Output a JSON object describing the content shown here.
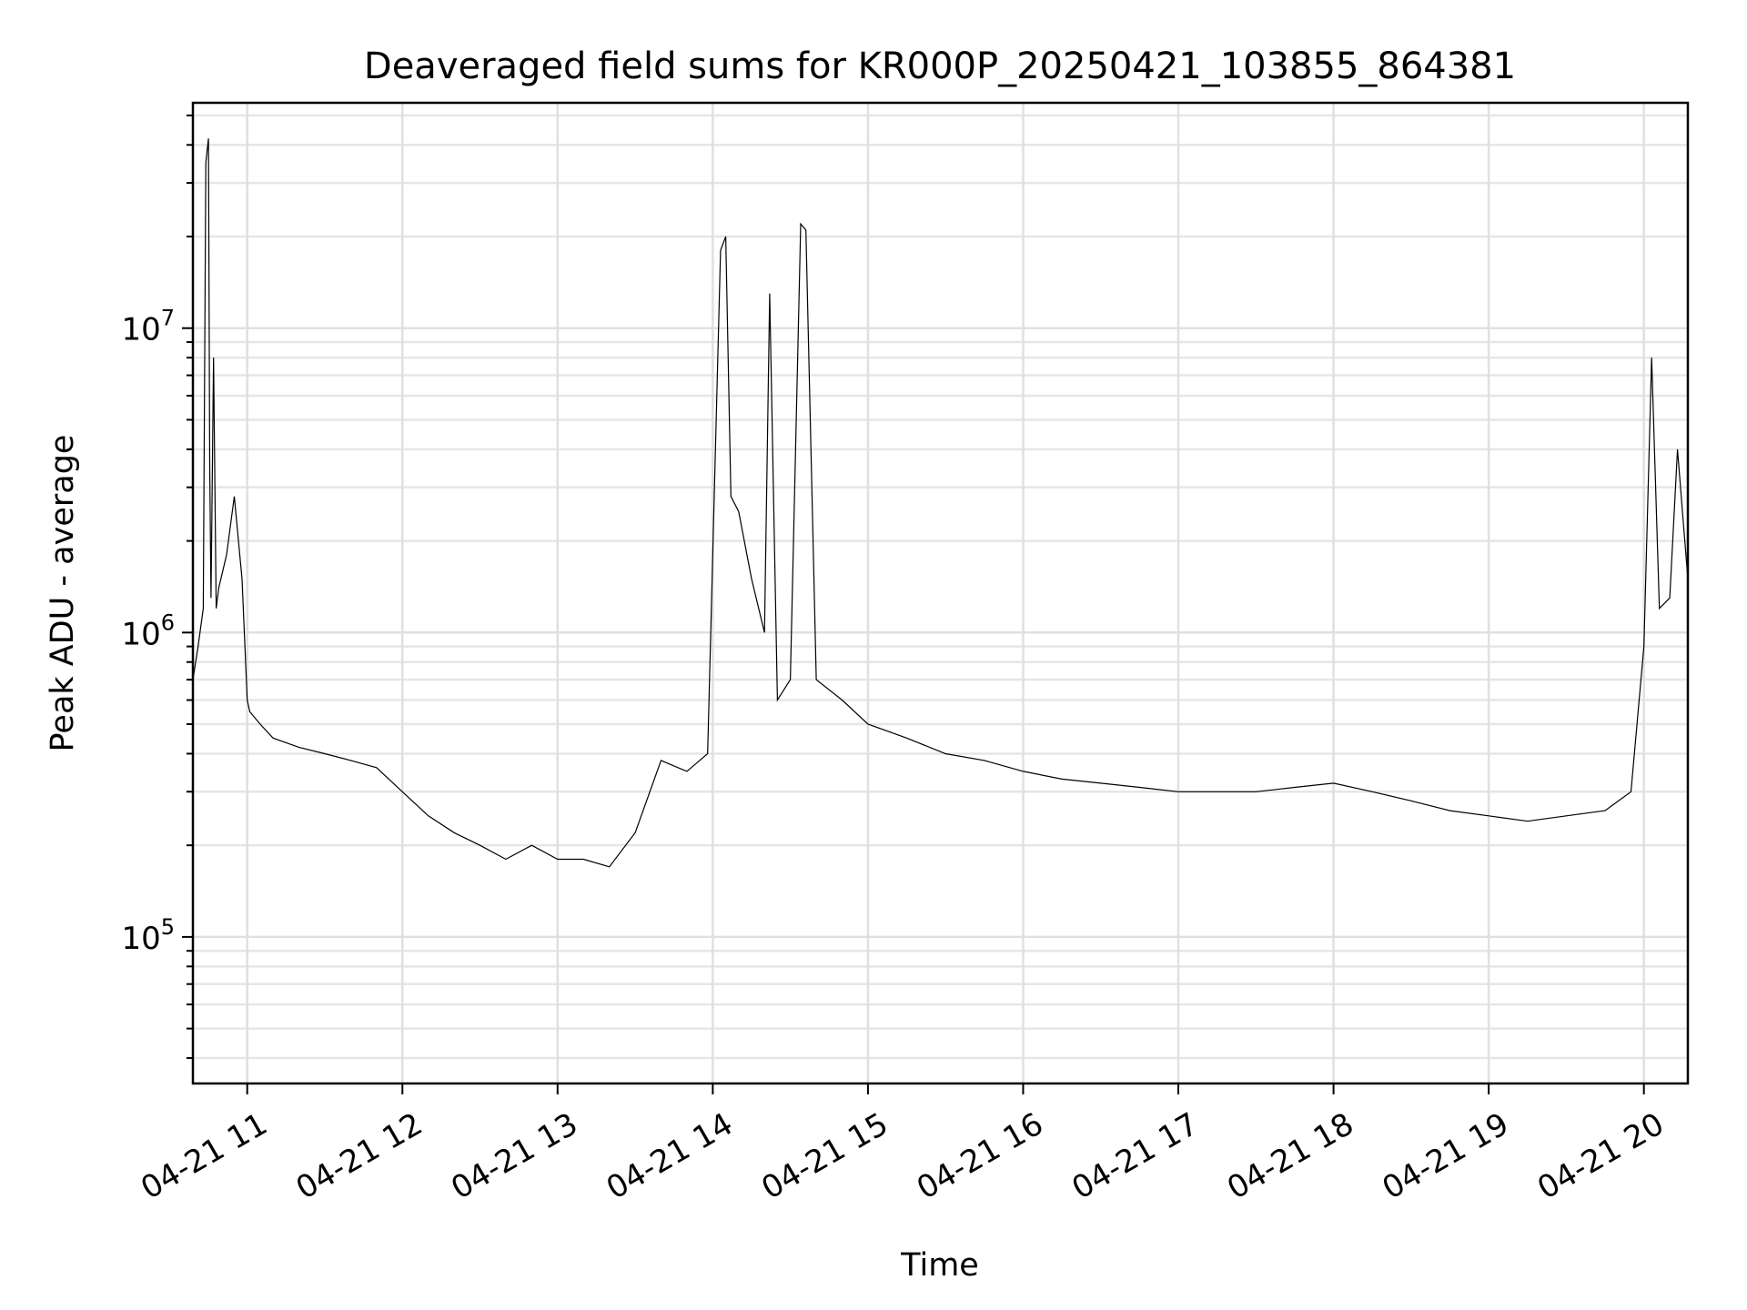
{
  "chart_data": {
    "type": "line",
    "title": "Deaveraged field sums for KR000P_20250421_103855_864381",
    "xlabel": "Time",
    "ylabel": "Peak ADU - average",
    "xscale": "time",
    "yscale": "log",
    "xlim": [
      "2025-04-21T10:39:00",
      "2025-04-21T20:17:00"
    ],
    "ylim": [
      33000,
      55000000
    ],
    "grid": true,
    "legend": "none",
    "line_color": "#000000",
    "xticks": [
      {
        "value": "2025-04-21T11:00:00",
        "label": "04-21 11"
      },
      {
        "value": "2025-04-21T12:00:00",
        "label": "04-21 12"
      },
      {
        "value": "2025-04-21T13:00:00",
        "label": "04-21 13"
      },
      {
        "value": "2025-04-21T14:00:00",
        "label": "04-21 14"
      },
      {
        "value": "2025-04-21T15:00:00",
        "label": "04-21 15"
      },
      {
        "value": "2025-04-21T16:00:00",
        "label": "04-21 16"
      },
      {
        "value": "2025-04-21T17:00:00",
        "label": "04-21 17"
      },
      {
        "value": "2025-04-21T18:00:00",
        "label": "04-21 18"
      },
      {
        "value": "2025-04-21T19:00:00",
        "label": "04-21 19"
      },
      {
        "value": "2025-04-21T20:00:00",
        "label": "04-21 20"
      }
    ],
    "yticks": [
      {
        "value": 100000,
        "base": "10",
        "exp": "5"
      },
      {
        "value": 1000000,
        "base": "10",
        "exp": "6"
      },
      {
        "value": 10000000,
        "base": "10",
        "exp": "7"
      }
    ],
    "series": [
      {
        "x": [
          "2025-04-21T10:39:00",
          "2025-04-21T10:41:00",
          "2025-04-21T10:43:00",
          "2025-04-21T10:44:00",
          "2025-04-21T10:45:00",
          "2025-04-21T10:45:30",
          "2025-04-21T10:46:00",
          "2025-04-21T10:47:00",
          "2025-04-21T10:48:00",
          "2025-04-21T10:49:00",
          "2025-04-21T10:52:00",
          "2025-04-21T10:55:00",
          "2025-04-21T10:58:00",
          "2025-04-21T11:00:00",
          "2025-04-21T11:01:00",
          "2025-04-21T11:05:00",
          "2025-04-21T11:10:00",
          "2025-04-21T11:20:00",
          "2025-04-21T11:30:00",
          "2025-04-21T11:40:00",
          "2025-04-21T11:50:00",
          "2025-04-21T12:00:00",
          "2025-04-21T12:10:00",
          "2025-04-21T12:20:00",
          "2025-04-21T12:30:00",
          "2025-04-21T12:40:00",
          "2025-04-21T12:50:00",
          "2025-04-21T13:00:00",
          "2025-04-21T13:10:00",
          "2025-04-21T13:20:00",
          "2025-04-21T13:30:00",
          "2025-04-21T13:40:00",
          "2025-04-21T13:50:00",
          "2025-04-21T13:58:00",
          "2025-04-21T14:03:00",
          "2025-04-21T14:05:00",
          "2025-04-21T14:07:00",
          "2025-04-21T14:10:00",
          "2025-04-21T14:15:00",
          "2025-04-21T14:20:00",
          "2025-04-21T14:22:00",
          "2025-04-21T14:25:00",
          "2025-04-21T14:30:00",
          "2025-04-21T14:34:00",
          "2025-04-21T14:36:00",
          "2025-04-21T14:40:00",
          "2025-04-21T14:50:00",
          "2025-04-21T15:00:00",
          "2025-04-21T15:15:00",
          "2025-04-21T15:30:00",
          "2025-04-21T15:45:00",
          "2025-04-21T16:00:00",
          "2025-04-21T16:15:00",
          "2025-04-21T16:30:00",
          "2025-04-21T16:45:00",
          "2025-04-21T17:00:00",
          "2025-04-21T17:15:00",
          "2025-04-21T17:30:00",
          "2025-04-21T17:45:00",
          "2025-04-21T18:00:00",
          "2025-04-21T18:15:00",
          "2025-04-21T18:30:00",
          "2025-04-21T18:45:00",
          "2025-04-21T19:00:00",
          "2025-04-21T19:15:00",
          "2025-04-21T19:30:00",
          "2025-04-21T19:45:00",
          "2025-04-21T19:55:00",
          "2025-04-21T20:00:00",
          "2025-04-21T20:03:00",
          "2025-04-21T20:06:00",
          "2025-04-21T20:10:00",
          "2025-04-21T20:13:00",
          "2025-04-21T20:17:00"
        ],
        "y": [
          700000,
          900000,
          1200000,
          35000000,
          42000000,
          3500000,
          1300000,
          8000000,
          1200000,
          1400000,
          1800000,
          2800000,
          1500000,
          600000,
          550000,
          500000,
          450000,
          420000,
          400000,
          380000,
          360000,
          300000,
          250000,
          220000,
          200000,
          180000,
          200000,
          180000,
          180000,
          170000,
          220000,
          380000,
          350000,
          400000,
          18000000,
          20000000,
          2800000,
          2500000,
          1500000,
          1000000,
          13000000,
          600000,
          700000,
          22000000,
          21000000,
          700000,
          600000,
          500000,
          450000,
          400000,
          380000,
          350000,
          330000,
          320000,
          310000,
          300000,
          300000,
          300000,
          310000,
          320000,
          300000,
          280000,
          260000,
          250000,
          240000,
          250000,
          260000,
          300000,
          900000,
          8000000,
          1200000,
          1300000,
          4000000,
          1500000
        ]
      }
    ]
  }
}
